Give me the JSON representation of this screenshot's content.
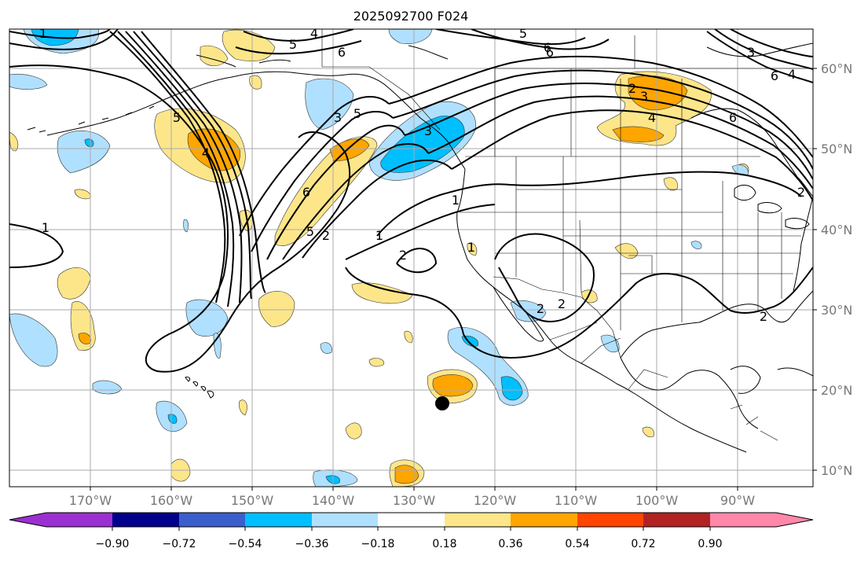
{
  "title": "2025092700 F024",
  "lon_labels": [
    "170°W",
    "160°W",
    "150°W",
    "140°W",
    "130°W",
    "120°W",
    "110°W",
    "100°W",
    "90°W"
  ],
  "lat_labels": [
    "60°N",
    "50°N",
    "40°N",
    "30°N",
    "20°N",
    "10°N"
  ],
  "colorbar": {
    "ticks": [
      "−0.90",
      "−0.72",
      "−0.54",
      "−0.36",
      "−0.18",
      "0.18",
      "0.36",
      "0.54",
      "0.72",
      "0.90"
    ],
    "colors": [
      "#9b30d0",
      "#00008b",
      "#3a5fcd",
      "#00bfff",
      "#b0e0ff",
      "#ffffff",
      "#fde68a",
      "#ffa500",
      "#ff4500",
      "#b22222",
      "#ff88aa"
    ]
  },
  "contour_labels": [
    "1",
    "4",
    "5",
    "5",
    "6",
    "5",
    "6",
    "3",
    "6",
    "1",
    "5",
    "4",
    "3",
    "6",
    "5",
    "2",
    "1",
    "2",
    "3",
    "2",
    "4",
    "6",
    "1",
    "2",
    "2",
    "2",
    "3",
    "4",
    "6",
    "1",
    "2"
  ],
  "marker": "black-dot",
  "colors": {
    "ocean": "#ffffff",
    "warm_light": "#fde68a",
    "warm": "#ffa500",
    "cold_light": "#b0e0ff",
    "cold": "#00bfff"
  }
}
